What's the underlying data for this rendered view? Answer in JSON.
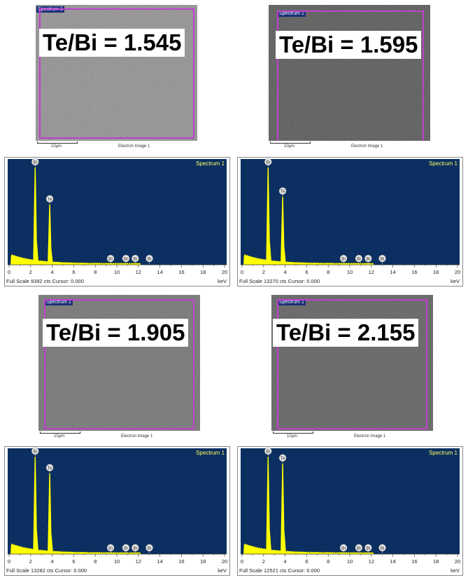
{
  "colors": {
    "plot_bg": "#0b2f60",
    "spectrum": "#ffff00",
    "roi": "#c13fd0",
    "spectrum_label": "#ffff66",
    "peak_marker": "#c8c8c8"
  },
  "panels": [
    {
      "sem": {
        "tag": "Spectrum 1",
        "ratio": "Te/Bi = 1.545",
        "scale": "10µm",
        "image_label": "Electron Image 1"
      },
      "footer": {
        "full_scale": "Full Scale 9392 cts Cursor: 0.000",
        "unit": "keV"
      }
    },
    {
      "sem": {
        "tag": "Spectrum 1",
        "ratio": "Te/Bi = 1.595",
        "scale": "10µm",
        "image_label": "Electron Image 1"
      },
      "footer": {
        "full_scale": "Full Scale 13270 cts Cursor: 0.000",
        "unit": "keV"
      }
    },
    {
      "sem": {
        "tag": "Spectrum 1",
        "ratio": "Te/Bi = 1.905",
        "scale": "10µm",
        "image_label": "Electron Image 1"
      },
      "footer": {
        "full_scale": "Full Scale 13282 cts Cursor: 0.000",
        "unit": "keV"
      }
    },
    {
      "sem": {
        "tag": "Spectrum 1",
        "ratio": "Te/Bi = 2.155",
        "scale": "10µm",
        "image_label": "Electron Image 1"
      },
      "footer": {
        "full_scale": "Full Scale 12521 cts Cursor: 0.000",
        "unit": "keV"
      }
    }
  ],
  "chart_data": [
    {
      "type": "line",
      "title": "Spectrum 1",
      "xlabel": "keV",
      "xlim": [
        0,
        20
      ],
      "ylim": [
        0,
        1
      ],
      "x_ticks": [
        0,
        2,
        4,
        6,
        8,
        10,
        12,
        14,
        16,
        18,
        20
      ],
      "peaks": [
        {
          "label": "Bi",
          "x": 2.42,
          "y": 1.0
        },
        {
          "label": "Te",
          "x": 3.77,
          "y": 0.62
        },
        {
          "label": "Bi",
          "x": 9.42,
          "y": 0.0
        },
        {
          "label": "Bi",
          "x": 10.84,
          "y": 0.0
        },
        {
          "label": "Bi",
          "x": 11.71,
          "y": 0.0
        },
        {
          "label": "Bi",
          "x": 13.02,
          "y": 0.0
        }
      ]
    },
    {
      "type": "line",
      "title": "Spectrum 1",
      "xlabel": "keV",
      "xlim": [
        0,
        20
      ],
      "ylim": [
        0,
        1
      ],
      "x_ticks": [
        0,
        2,
        4,
        6,
        8,
        10,
        12,
        14,
        16,
        18,
        20
      ],
      "peaks": [
        {
          "label": "Bi",
          "x": 2.42,
          "y": 1.0
        },
        {
          "label": "Te",
          "x": 3.77,
          "y": 0.7
        },
        {
          "label": "Bi",
          "x": 9.42,
          "y": 0.0
        },
        {
          "label": "Bi",
          "x": 10.84,
          "y": 0.0
        },
        {
          "label": "Bi",
          "x": 11.71,
          "y": 0.0
        },
        {
          "label": "Bi",
          "x": 13.02,
          "y": 0.0
        }
      ]
    },
    {
      "type": "line",
      "title": "Spectrum 1",
      "xlabel": "keV",
      "xlim": [
        0,
        20
      ],
      "ylim": [
        0,
        1
      ],
      "x_ticks": [
        0,
        2,
        4,
        6,
        8,
        10,
        12,
        14,
        16,
        18,
        20
      ],
      "peaks": [
        {
          "label": "Bi",
          "x": 2.42,
          "y": 1.0
        },
        {
          "label": "Te",
          "x": 3.77,
          "y": 0.83
        },
        {
          "label": "Bi",
          "x": 9.42,
          "y": 0.0
        },
        {
          "label": "Bi",
          "x": 10.84,
          "y": 0.0
        },
        {
          "label": "Bi",
          "x": 11.71,
          "y": 0.0
        },
        {
          "label": "Bi",
          "x": 13.02,
          "y": 0.0
        }
      ]
    },
    {
      "type": "line",
      "title": "Spectrum 1",
      "xlabel": "keV",
      "xlim": [
        0,
        20
      ],
      "ylim": [
        0,
        1
      ],
      "x_ticks": [
        0,
        2,
        4,
        6,
        8,
        10,
        12,
        14,
        16,
        18,
        20
      ],
      "peaks": [
        {
          "label": "Bi",
          "x": 2.42,
          "y": 1.0
        },
        {
          "label": "Te",
          "x": 3.77,
          "y": 0.93
        },
        {
          "label": "Bi",
          "x": 9.42,
          "y": 0.0
        },
        {
          "label": "Bi",
          "x": 10.84,
          "y": 0.0
        },
        {
          "label": "Bi",
          "x": 11.71,
          "y": 0.0
        },
        {
          "label": "Bi",
          "x": 13.02,
          "y": 0.0
        }
      ]
    }
  ]
}
